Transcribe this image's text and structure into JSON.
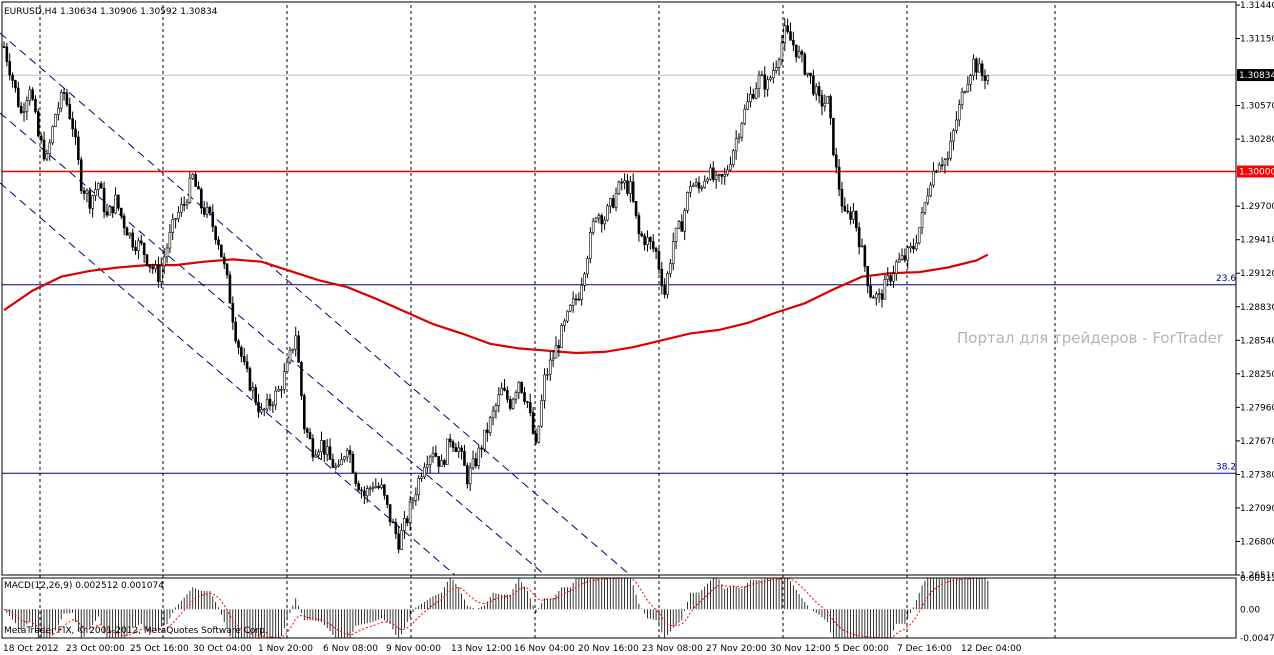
{
  "chart_data": {
    "type": "candlestick",
    "symbol_header": "EURUSD,H4  1.30634 1.30906 1.30592 1.30834",
    "current_price_label": "1.30834",
    "ylim": [
      1.2651,
      1.3144
    ],
    "yticks": [
      "1.31440",
      "1.31150",
      "1.30570",
      "1.30280",
      "1.29700",
      "1.29410",
      "1.29120",
      "1.28830",
      "1.28540",
      "1.28250",
      "1.27960",
      "1.27670",
      "1.27380",
      "1.27090",
      "1.26800",
      "1.26510"
    ],
    "xticks": [
      "18 Oct 2012",
      "23 Oct 00:00",
      "25 Oct 16:00",
      "30 Oct 04:00",
      "1 Nov 20:00",
      "6 Nov 08:00",
      "9 Nov 00:00",
      "13 Nov 12:00",
      "16 Nov 04:00",
      "20 Nov 16:00",
      "23 Nov 08:00",
      "27 Nov 20:00",
      "30 Nov 12:00",
      "5 Dec 00:00",
      "7 Dec 16:00",
      "12 Dec 04:00"
    ],
    "grid": true,
    "levels": [
      {
        "label": "1.30000",
        "value": 1.3,
        "color": "#ff0000"
      },
      {
        "label": "23.6",
        "value": 1.2902,
        "color": "#000080"
      },
      {
        "label": "38.2",
        "value": 1.2739,
        "color": "#000080"
      }
    ],
    "watermark": "Портал для трейдеров - ForTrader",
    "close_path": [
      [
        0,
        1.3108
      ],
      [
        3,
        1.308
      ],
      [
        6,
        1.305
      ],
      [
        9,
        1.3075
      ],
      [
        12,
        1.303
      ],
      [
        15,
        1.301
      ],
      [
        18,
        1.305
      ],
      [
        21,
        1.3068
      ],
      [
        24,
        1.304
      ],
      [
        27,
        1.299
      ],
      [
        30,
        1.2975
      ],
      [
        33,
        1.299
      ],
      [
        36,
        1.296
      ],
      [
        39,
        1.2975
      ],
      [
        42,
        1.2955
      ],
      [
        45,
        1.294
      ],
      [
        48,
        1.2935
      ],
      [
        51,
        1.292
      ],
      [
        54,
        1.291
      ],
      [
        57,
        1.2935
      ],
      [
        60,
        1.296
      ],
      [
        63,
        1.2972
      ],
      [
        66,
        1.2995
      ],
      [
        69,
        1.297
      ],
      [
        72,
        1.296
      ],
      [
        75,
        1.294
      ],
      [
        78,
        1.2905
      ],
      [
        81,
        1.286
      ],
      [
        84,
        1.283
      ],
      [
        87,
        1.281
      ],
      [
        90,
        1.279
      ],
      [
        93,
        1.28
      ],
      [
        96,
        1.281
      ],
      [
        99,
        1.283
      ],
      [
        102,
        1.286
      ],
      [
        105,
        1.278
      ],
      [
        108,
        1.276
      ],
      [
        111,
        1.2765
      ],
      [
        114,
        1.275
      ],
      [
        117,
        1.274
      ],
      [
        120,
        1.2765
      ],
      [
        123,
        1.2735
      ],
      [
        126,
        1.272
      ],
      [
        129,
        1.273
      ],
      [
        132,
        1.2725
      ],
      [
        135,
        1.27
      ],
      [
        138,
        1.268
      ],
      [
        141,
        1.27
      ],
      [
        144,
        1.2725
      ],
      [
        147,
        1.275
      ],
      [
        150,
        1.276
      ],
      [
        153,
        1.2745
      ],
      [
        156,
        1.277
      ],
      [
        159,
        1.276
      ],
      [
        162,
        1.2735
      ],
      [
        165,
        1.275
      ],
      [
        168,
        1.277
      ],
      [
        171,
        1.279
      ],
      [
        174,
        1.281
      ],
      [
        177,
        1.28
      ],
      [
        180,
        1.282
      ],
      [
        183,
        1.28
      ],
      [
        186,
        1.276
      ],
      [
        189,
        1.282
      ],
      [
        192,
        1.284
      ],
      [
        195,
        1.286
      ],
      [
        198,
        1.288
      ],
      [
        201,
        1.2895
      ],
      [
        204,
        1.293
      ],
      [
        207,
        1.2965
      ],
      [
        210,
        1.296
      ],
      [
        213,
        1.2975
      ],
      [
        216,
        1.299
      ],
      [
        219,
        1.2985
      ],
      [
        222,
        1.2945
      ],
      [
        225,
        1.294
      ],
      [
        228,
        1.293
      ],
      [
        231,
        1.2895
      ],
      [
        234,
        1.294
      ],
      [
        237,
        1.2955
      ],
      [
        240,
        1.299
      ],
      [
        243,
        1.2985
      ],
      [
        246,
        1.3
      ],
      [
        249,
        1.299
      ],
      [
        252,
        1.2995
      ],
      [
        255,
        1.302
      ],
      [
        258,
        1.3045
      ],
      [
        261,
        1.3065
      ],
      [
        264,
        1.308
      ],
      [
        267,
        1.3075
      ],
      [
        270,
        1.3095
      ],
      [
        273,
        1.312
      ],
      [
        276,
        1.311
      ],
      [
        279,
        1.3095
      ],
      [
        282,
        1.308
      ],
      [
        285,
        1.306
      ],
      [
        288,
        1.306
      ],
      [
        291,
        1.3
      ],
      [
        294,
        1.296
      ],
      [
        297,
        1.2965
      ],
      [
        300,
        1.293
      ],
      [
        303,
        1.2895
      ],
      [
        306,
        1.289
      ],
      [
        309,
        1.2905
      ],
      [
        312,
        1.292
      ],
      [
        315,
        1.2925
      ],
      [
        318,
        1.2935
      ],
      [
        321,
        1.296
      ],
      [
        324,
        1.2995
      ],
      [
        327,
        1.301
      ],
      [
        330,
        1.301
      ],
      [
        333,
        1.3045
      ],
      [
        336,
        1.3075
      ],
      [
        339,
        1.3095
      ],
      [
        342,
        1.3083
      ]
    ],
    "ma_line": [
      [
        0,
        1.288
      ],
      [
        10,
        1.2897
      ],
      [
        20,
        1.2909
      ],
      [
        30,
        1.2914
      ],
      [
        40,
        1.2917
      ],
      [
        50,
        1.2919
      ],
      [
        60,
        1.2919
      ],
      [
        70,
        1.2922
      ],
      [
        80,
        1.2924
      ],
      [
        90,
        1.2922
      ],
      [
        100,
        1.2914
      ],
      [
        110,
        1.2906
      ],
      [
        120,
        1.29
      ],
      [
        130,
        1.289
      ],
      [
        140,
        1.2879
      ],
      [
        150,
        1.2868
      ],
      [
        160,
        1.286
      ],
      [
        170,
        1.2851
      ],
      [
        180,
        1.2847
      ],
      [
        190,
        1.2845
      ],
      [
        200,
        1.2843
      ],
      [
        210,
        1.2844
      ],
      [
        220,
        1.2848
      ],
      [
        230,
        1.2854
      ],
      [
        240,
        1.286
      ],
      [
        250,
        1.2863
      ],
      [
        260,
        1.2869
      ],
      [
        270,
        1.2878
      ],
      [
        280,
        1.2886
      ],
      [
        290,
        1.2898
      ],
      [
        300,
        1.2909
      ],
      [
        310,
        1.2912
      ],
      [
        320,
        1.2913
      ],
      [
        330,
        1.2917
      ],
      [
        340,
        1.2923
      ],
      [
        344,
        1.2928
      ]
    ],
    "macd": {
      "label": "MACD(12,26,9) 0.002512 0.001074",
      "ylim": [
        -0.00471,
        0.00512
      ],
      "yticks": [
        "0.00512",
        "0.00",
        "-0.00471"
      ]
    },
    "footer": "MetaTrader FIX, © 2001-2012, MetaQuotes Software Corp."
  }
}
